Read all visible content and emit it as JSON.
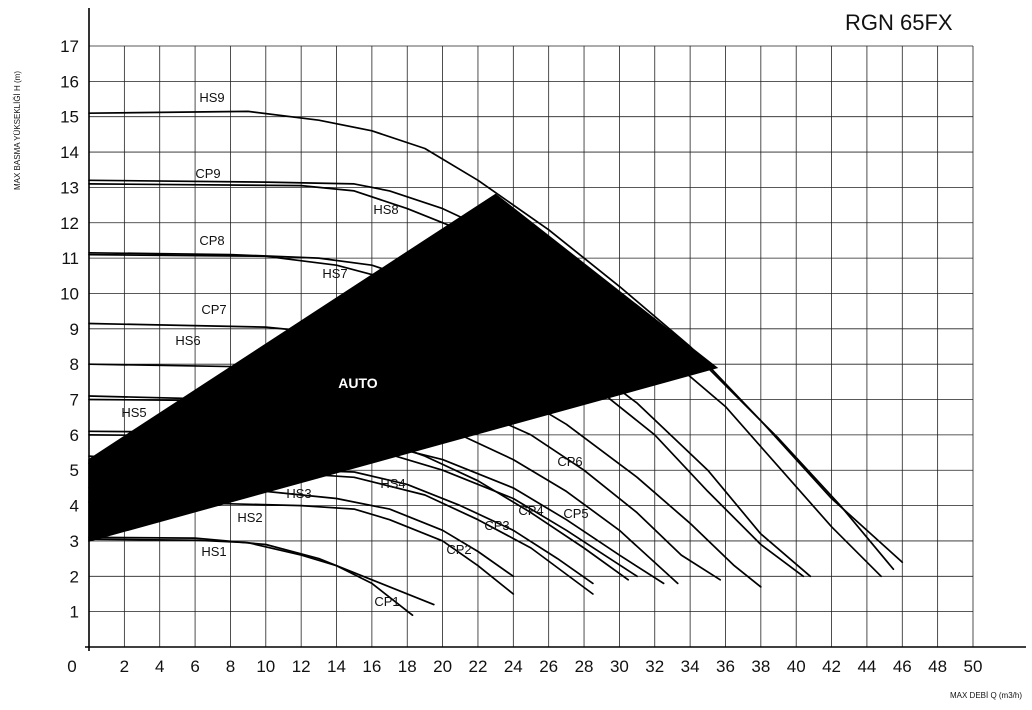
{
  "chart_data": {
    "type": "line",
    "title": "RGN 65FX",
    "xlabel": "MAX DEBİ  Q (m3/h)",
    "ylabel": "MAX BASMA YÜKSEKLİĞİ H (m)",
    "xlim": [
      0,
      50
    ],
    "ylim": [
      0,
      17
    ],
    "x_ticks": [
      "0",
      "2",
      "4",
      "6",
      "8",
      "10",
      "12",
      "14",
      "16",
      "18",
      "20",
      "22",
      "24",
      "26",
      "28",
      "30",
      "32",
      "34",
      "36",
      "38",
      "40",
      "42",
      "44",
      "46",
      "48",
      "50"
    ],
    "y_ticks": [
      "1",
      "2",
      "3",
      "4",
      "5",
      "6",
      "7",
      "8",
      "9",
      "10",
      "11",
      "12",
      "13",
      "14",
      "15",
      "16",
      "17"
    ],
    "grid": true,
    "auto_region": {
      "label": "AUTO",
      "polygon": [
        [
          0,
          5.3
        ],
        [
          23,
          12.8
        ],
        [
          35.5,
          7.9
        ],
        [
          0,
          3.0
        ]
      ]
    },
    "series": [
      {
        "name": "HS9",
        "points": [
          [
            0,
            15.1
          ],
          [
            9,
            15.15
          ],
          [
            13,
            14.9
          ],
          [
            16,
            14.6
          ],
          [
            19,
            14.1
          ],
          [
            22,
            13.2
          ],
          [
            26,
            11.8
          ],
          [
            30,
            10.2
          ],
          [
            34,
            8.5
          ],
          [
            38,
            6.4
          ],
          [
            42,
            4.2
          ],
          [
            46,
            2.4
          ]
        ]
      },
      {
        "name": "CP9",
        "points": [
          [
            0,
            13.2
          ],
          [
            10,
            13.15
          ],
          [
            15,
            13.1
          ],
          [
            17,
            12.9
          ],
          [
            20,
            12.4
          ],
          [
            23,
            11.7
          ],
          [
            27,
            10.7
          ],
          [
            31,
            9.5
          ],
          [
            35,
            7.9
          ],
          [
            39,
            5.9
          ],
          [
            42.5,
            4.0
          ],
          [
            45.5,
            2.2
          ]
        ]
      },
      {
        "name": "HS8",
        "points": [
          [
            0,
            13.1
          ],
          [
            12,
            13.05
          ],
          [
            15,
            12.9
          ],
          [
            18,
            12.4
          ],
          [
            21,
            11.8
          ],
          [
            24,
            11.0
          ],
          [
            28,
            9.8
          ],
          [
            32,
            8.5
          ],
          [
            36,
            6.8
          ],
          [
            39,
            5.1
          ],
          [
            42,
            3.4
          ],
          [
            44.8,
            2.0
          ]
        ]
      },
      {
        "name": "CP8",
        "points": [
          [
            0,
            11.15
          ],
          [
            8,
            11.1
          ],
          [
            13,
            11.0
          ],
          [
            16,
            10.8
          ],
          [
            19,
            10.3
          ],
          [
            23,
            9.6
          ],
          [
            27,
            8.4
          ],
          [
            31,
            6.9
          ],
          [
            35,
            5.0
          ],
          [
            38,
            3.2
          ],
          [
            40.8,
            2.0
          ]
        ]
      },
      {
        "name": "HS7",
        "points": [
          [
            0,
            11.1
          ],
          [
            10,
            11.05
          ],
          [
            14,
            10.8
          ],
          [
            17,
            10.4
          ],
          [
            20,
            9.9
          ],
          [
            24,
            8.9
          ],
          [
            28,
            7.6
          ],
          [
            32,
            6.0
          ],
          [
            35,
            4.4
          ],
          [
            38,
            2.9
          ],
          [
            40.4,
            2.0
          ]
        ]
      },
      {
        "name": "CP7",
        "points": [
          [
            0,
            9.15
          ],
          [
            10,
            9.05
          ],
          [
            15,
            8.8
          ],
          [
            19,
            8.3
          ],
          [
            23,
            7.5
          ],
          [
            27,
            6.3
          ],
          [
            31,
            4.8
          ],
          [
            34,
            3.5
          ],
          [
            36.5,
            2.3
          ],
          [
            38,
            1.7
          ]
        ]
      },
      {
        "name": "HS6",
        "points": [
          [
            0,
            8.0
          ],
          [
            12,
            7.9
          ],
          [
            17,
            7.5
          ],
          [
            21,
            6.9
          ],
          [
            25,
            6.0
          ],
          [
            28,
            5.0
          ],
          [
            31,
            3.8
          ],
          [
            33.5,
            2.6
          ],
          [
            35.7,
            1.9
          ]
        ]
      },
      {
        "name": "CP6",
        "points": [
          [
            0,
            7.0
          ],
          [
            12,
            6.95
          ],
          [
            17,
            6.6
          ],
          [
            21,
            6.0
          ],
          [
            24,
            5.3
          ],
          [
            27,
            4.4
          ],
          [
            30,
            3.3
          ],
          [
            33.3,
            1.8
          ]
        ]
      },
      {
        "name": "CP5",
        "points": [
          [
            0,
            6.1
          ],
          [
            12,
            6.05
          ],
          [
            16,
            5.8
          ],
          [
            20,
            5.3
          ],
          [
            24,
            4.5
          ],
          [
            27,
            3.6
          ],
          [
            30,
            2.6
          ],
          [
            32.5,
            1.8
          ]
        ]
      },
      {
        "name": "CP4",
        "points": [
          [
            0,
            6.0
          ],
          [
            12,
            5.95
          ],
          [
            16,
            5.6
          ],
          [
            20,
            5.0
          ],
          [
            24,
            4.2
          ],
          [
            27,
            3.3
          ],
          [
            31,
            2.0
          ]
        ]
      },
      {
        "name": "HS5",
        "points": [
          [
            0,
            7.1
          ],
          [
            8,
            7.0
          ],
          [
            12,
            6.6
          ],
          [
            15,
            6.1
          ],
          [
            19,
            5.4
          ],
          [
            22,
            4.7
          ],
          [
            25,
            3.8
          ],
          [
            28,
            2.8
          ],
          [
            30.5,
            1.9
          ]
        ]
      },
      {
        "name": "HS4",
        "points": [
          [
            0,
            5.4
          ],
          [
            12,
            5.0
          ],
          [
            15,
            4.95
          ],
          [
            18,
            4.6
          ],
          [
            21,
            4.0
          ],
          [
            24,
            3.3
          ],
          [
            26.5,
            2.5
          ],
          [
            28.5,
            1.8
          ]
        ]
      },
      {
        "name": "CP3",
        "points": [
          [
            0,
            5.2
          ],
          [
            12,
            4.9
          ],
          [
            15,
            4.8
          ],
          [
            19,
            4.3
          ],
          [
            22,
            3.6
          ],
          [
            25,
            2.8
          ],
          [
            28.5,
            1.5
          ]
        ]
      },
      {
        "name": "HS3",
        "points": [
          [
            0,
            4.5
          ],
          [
            10,
            4.4
          ],
          [
            14,
            4.2
          ],
          [
            17,
            3.9
          ],
          [
            20,
            3.3
          ],
          [
            22,
            2.7
          ],
          [
            24,
            2.0
          ]
        ]
      },
      {
        "name": "CP2",
        "points": [
          [
            0,
            4.1
          ],
          [
            8,
            4.05
          ],
          [
            12,
            4.0
          ],
          [
            15,
            3.9
          ],
          [
            17,
            3.6
          ],
          [
            20,
            3.0
          ],
          [
            22,
            2.3
          ],
          [
            24,
            1.5
          ]
        ]
      },
      {
        "name": "HS2",
        "points": [
          [
            0,
            3.1
          ],
          [
            6,
            3.08
          ],
          [
            10,
            2.9
          ],
          [
            13,
            2.5
          ],
          [
            16,
            1.9
          ],
          [
            19.5,
            1.2
          ]
        ]
      },
      {
        "name": "HS1",
        "points": [
          [
            0,
            3.05
          ],
          [
            6,
            3.02
          ],
          [
            9,
            2.95
          ],
          [
            12,
            2.6
          ],
          [
            14,
            2.3
          ],
          [
            16,
            1.8
          ],
          [
            18.3,
            0.9
          ]
        ]
      }
    ]
  }
}
